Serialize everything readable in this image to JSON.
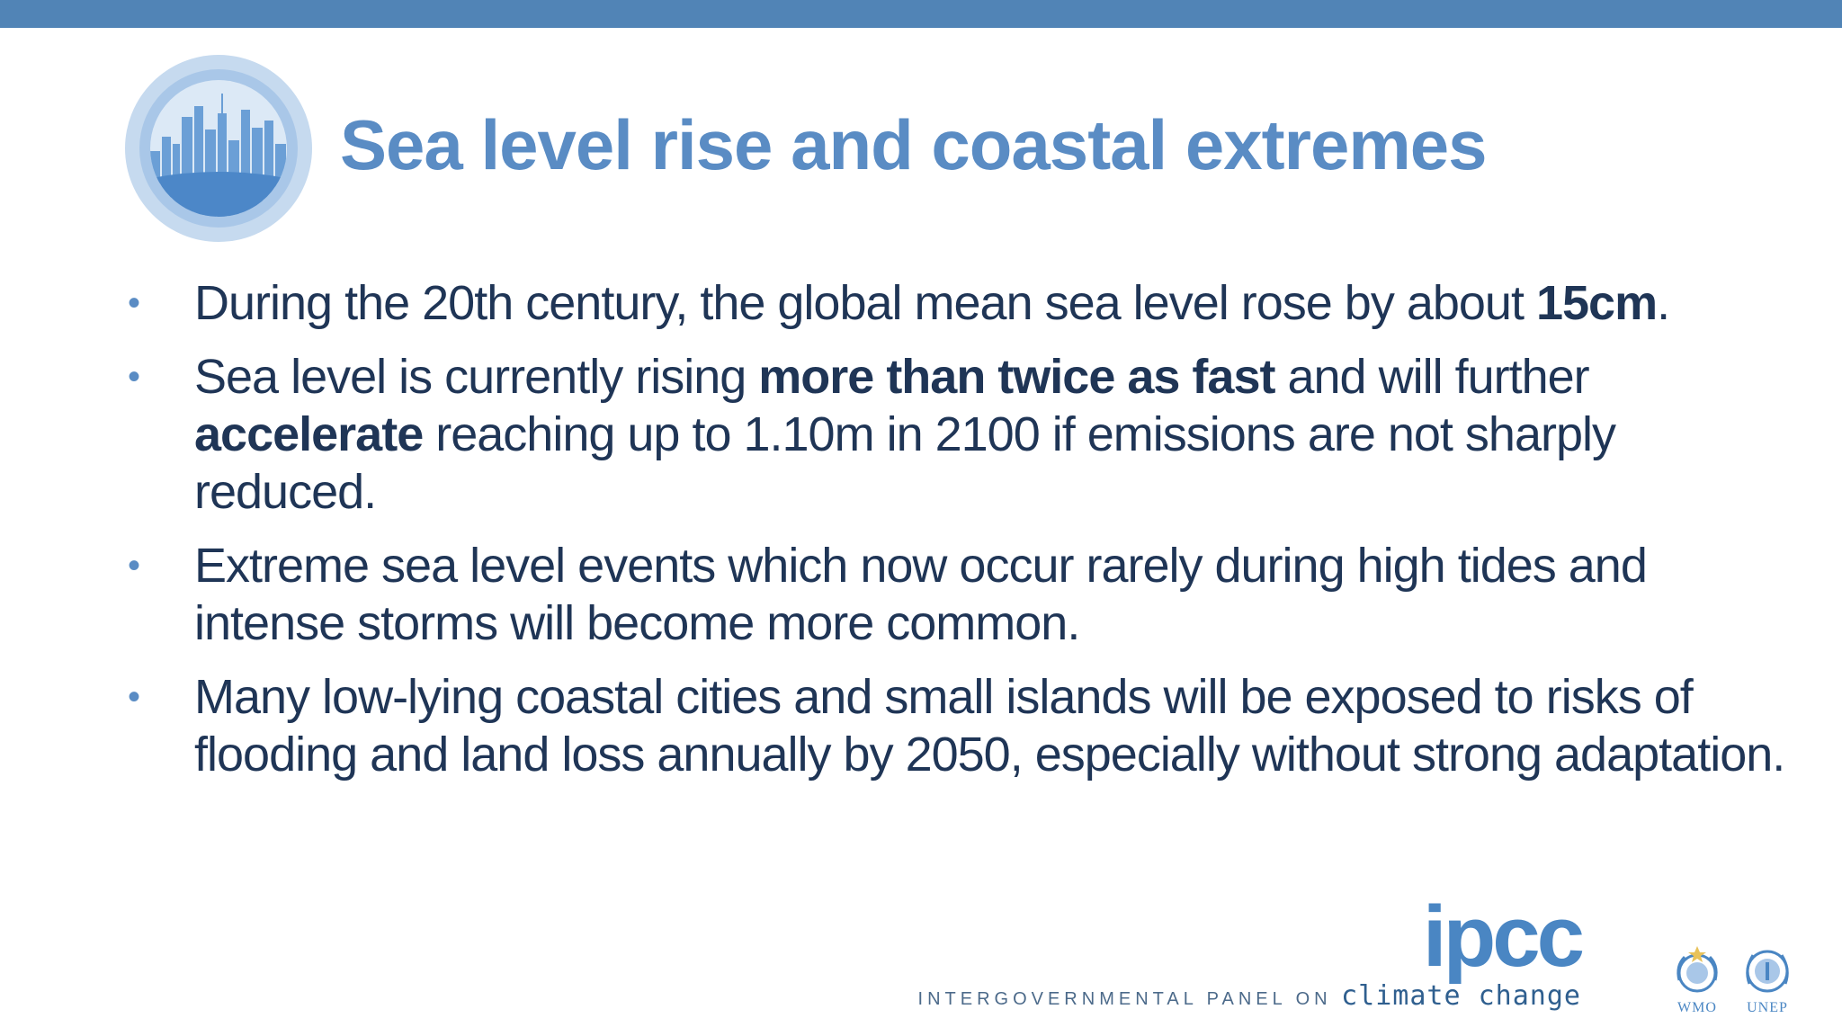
{
  "header": {
    "title": "Sea level rise and coastal extremes",
    "bar_color": "#5184b6",
    "emblem_icon": "city-skyline-icon"
  },
  "bullets": [
    {
      "segments": [
        {
          "text": "During the 20th century, the global mean sea level rose by about ",
          "bold": false
        },
        {
          "text": "15cm",
          "bold": true
        },
        {
          "text": ".",
          "bold": false
        }
      ]
    },
    {
      "segments": [
        {
          "text": "Sea level is currently rising ",
          "bold": false
        },
        {
          "text": "more than twice as fast",
          "bold": true
        },
        {
          "text": " and will further ",
          "bold": false
        },
        {
          "text": "accelerate",
          "bold": true
        },
        {
          "text": " reaching up to 1.10m in 2100 if emissions are not sharply reduced.",
          "bold": false
        }
      ]
    },
    {
      "segments": [
        {
          "text": "Extreme sea level events which now occur rarely during high tides and intense storms will become more common.",
          "bold": false
        }
      ]
    },
    {
      "segments": [
        {
          "text": "Many low-lying coastal cities and small islands will be exposed to risks of flooding and land loss annually by 2050, especially without strong adaptation.",
          "bold": false
        }
      ]
    }
  ],
  "footer": {
    "logo_text": "ipcc",
    "tagline_prefix": "INTERGOVERNMENTAL PANEL ON ",
    "tagline_suffix": "climate change",
    "partners": [
      {
        "label": "WMO",
        "icon": "wmo-emblem-icon"
      },
      {
        "label": "UNEP",
        "icon": "unep-emblem-icon"
      }
    ]
  },
  "colors": {
    "title": "#5a8cc4",
    "body_text": "#1f3556",
    "bullet_dot": "#5a8cc4",
    "logo": "#4a86c3"
  }
}
